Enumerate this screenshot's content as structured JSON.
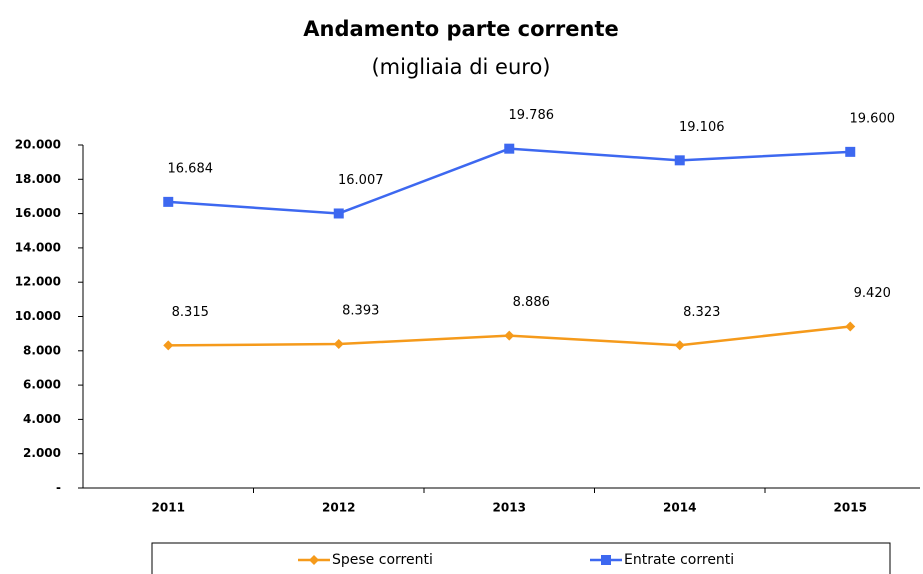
{
  "chart_data": {
    "type": "line",
    "title": "Andamento parte corrente",
    "subtitle": "(migliaia di euro)",
    "categories": [
      "2011",
      "2012",
      "2013",
      "2014",
      "2015"
    ],
    "series": [
      {
        "name": "Spese correnti",
        "color": "#f59a1b",
        "marker": "diamond",
        "values": [
          8315,
          8393,
          8886,
          8323,
          9420
        ],
        "value_labels": [
          "8.315",
          "8.393",
          "8.886",
          "8.323",
          "9.420"
        ]
      },
      {
        "name": "Entrate correnti",
        "color": "#3d68f0",
        "marker": "square",
        "values": [
          16684,
          16007,
          19786,
          19106,
          19600
        ],
        "value_labels": [
          "16.684",
          "16.007",
          "19.786",
          "19.106",
          "19.600"
        ]
      }
    ],
    "ylim": [
      0,
      20000
    ],
    "yticks": [
      {
        "value": 0,
        "label": "-"
      },
      {
        "value": 2000,
        "label": "2.000"
      },
      {
        "value": 4000,
        "label": "4.000"
      },
      {
        "value": 6000,
        "label": "6.000"
      },
      {
        "value": 8000,
        "label": "8.000"
      },
      {
        "value": 10000,
        "label": "10.000"
      },
      {
        "value": 12000,
        "label": "12.000"
      },
      {
        "value": 14000,
        "label": "14.000"
      },
      {
        "value": 16000,
        "label": "16.000"
      },
      {
        "value": 18000,
        "label": "18.000"
      },
      {
        "value": 20000,
        "label": "20.000"
      }
    ],
    "grid": false,
    "legend": "bottom"
  }
}
